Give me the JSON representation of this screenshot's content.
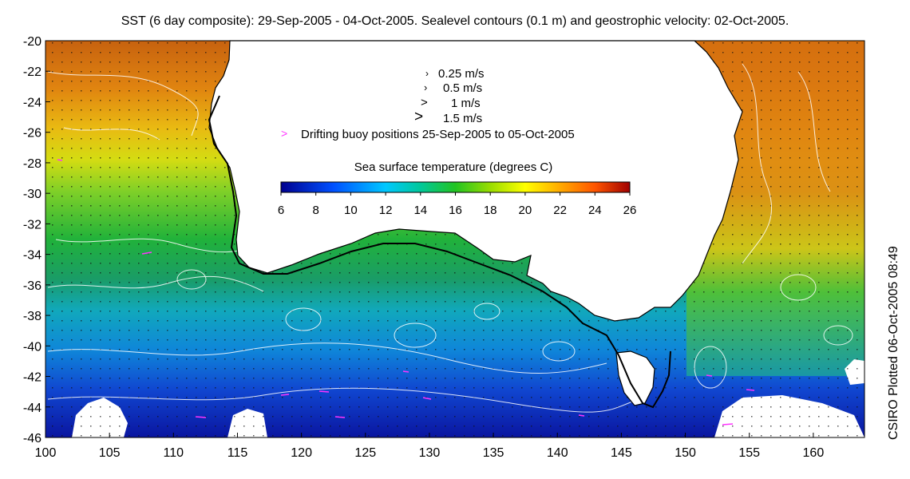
{
  "title": "SST (6 day composite): 29-Sep-2005 - 04-Oct-2005. Sealevel contours (0.1 m) and geostrophic velocity: 02-Oct-2005.",
  "side_label": "CSIRO Plotted 06-Oct-2005 08:49",
  "axes": {
    "lon_ticks": [
      "100",
      "105",
      "110",
      "115",
      "120",
      "125",
      "130",
      "135",
      "140",
      "145",
      "150",
      "155",
      "160"
    ],
    "lat_ticks": [
      "-20",
      "-22",
      "-24",
      "-26",
      "-28",
      "-30",
      "-32",
      "-34",
      "-36",
      "-38",
      "-40",
      "-42",
      "-44",
      "-46"
    ],
    "lon_range": [
      100,
      164
    ],
    "lat_range": [
      -46,
      -20
    ]
  },
  "legend": {
    "velocity_items": [
      {
        "symbol": "›",
        "label": "0.25 m/s"
      },
      {
        "symbol": "›",
        "label": "0.5 m/s"
      },
      {
        "symbol": ">",
        "label": "1 m/s"
      },
      {
        "symbol": ">",
        "label": "1.5 m/s"
      }
    ],
    "buoy_symbol": ">",
    "buoy_label": "Drifting buoy positions 25-Sep-2005 to 05-Oct-2005",
    "buoy_color": "#ff33ff"
  },
  "colorbar": {
    "title": "Sea surface temperature (degrees C)",
    "ticks": [
      "6",
      "8",
      "10",
      "12",
      "14",
      "16",
      "18",
      "20",
      "22",
      "24",
      "26"
    ],
    "colors": [
      "#00008f",
      "#0050ff",
      "#00c8ff",
      "#00c89a",
      "#22c422",
      "#99dd00",
      "#ffff00",
      "#ffaa00",
      "#ff5500",
      "#a00000"
    ]
  }
}
